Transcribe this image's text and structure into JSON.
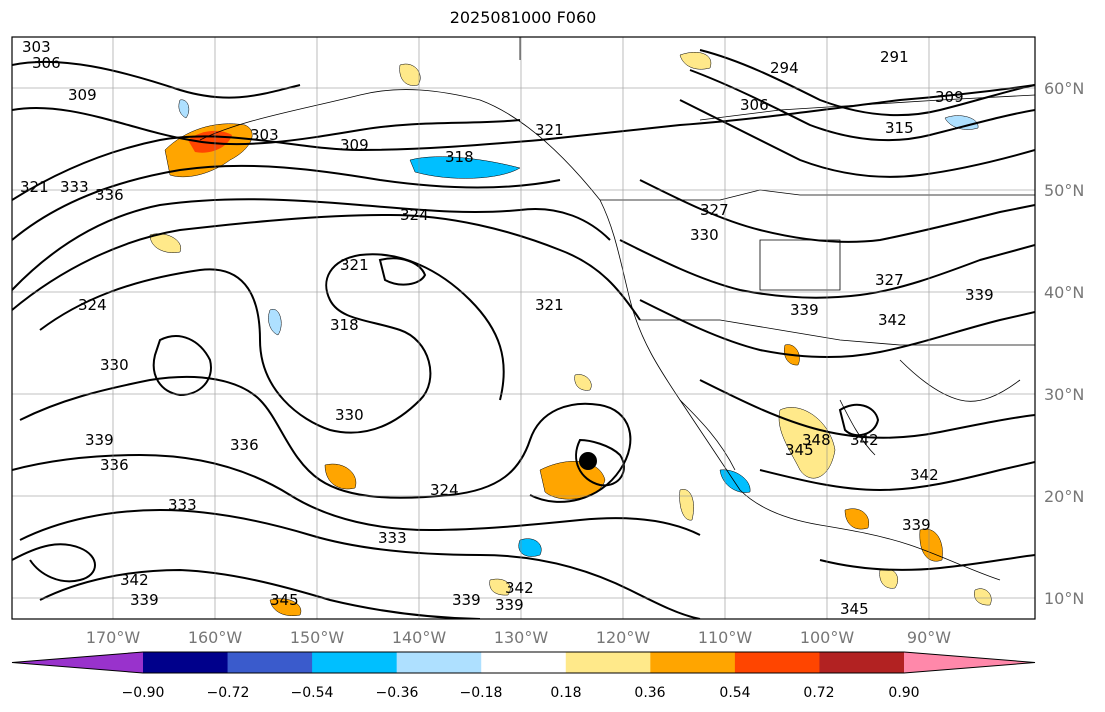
{
  "title": "2025081000 F060",
  "map": {
    "lat_ticks": [
      "60°N",
      "50°N",
      "40°N",
      "30°N",
      "20°N",
      "10°N"
    ],
    "lon_ticks": [
      "170°W",
      "160°W",
      "150°W",
      "140°W",
      "130°W",
      "120°W",
      "110°W",
      "100°W",
      "90°W"
    ],
    "contour_labels": [
      "303",
      "306",
      "309",
      "303",
      "309",
      "318",
      "321",
      "324",
      "321",
      "318",
      "321",
      "327",
      "330",
      "333",
      "336",
      "321",
      "324",
      "330",
      "336",
      "339",
      "330",
      "336",
      "333",
      "324",
      "333",
      "342",
      "339",
      "345",
      "339",
      "339",
      "342",
      "345",
      "348",
      "342",
      "342",
      "339",
      "345",
      "339",
      "294",
      "291",
      "309",
      "315",
      "306",
      "327",
      "339",
      "342"
    ]
  },
  "colorbar": {
    "ticks": [
      "−0.90",
      "−0.72",
      "−0.54",
      "−0.36",
      "−0.18",
      "0.18",
      "0.36",
      "0.54",
      "0.72",
      "0.90"
    ],
    "colors": [
      "#9932cc",
      "#00008b",
      "#3a5bcc",
      "#00bfff",
      "#aee0ff",
      "#ffffff",
      "#ffe98a",
      "#ffa500",
      "#ff4500",
      "#b22222",
      "#ff88aa"
    ]
  }
}
